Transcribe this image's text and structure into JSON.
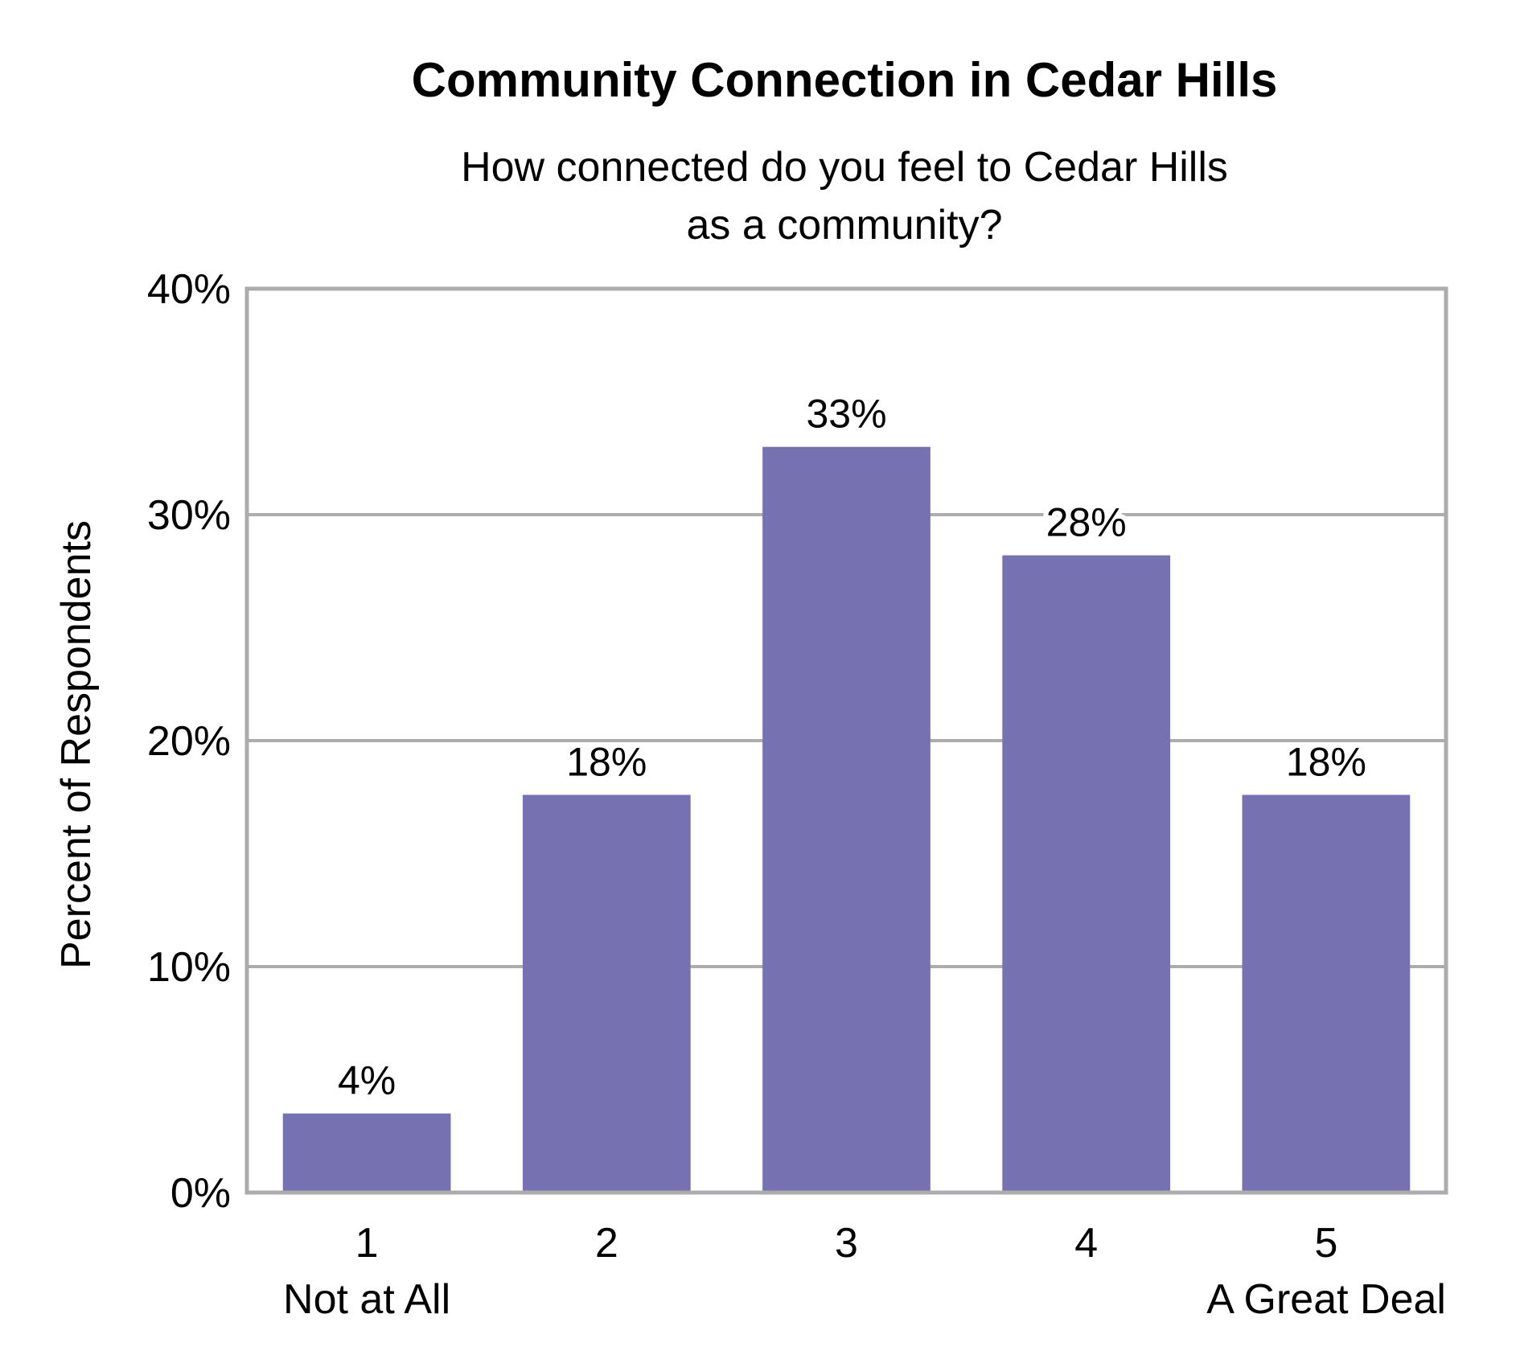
{
  "chart_data": {
    "type": "bar",
    "title": "Community Connection in Cedar Hills",
    "subtitle_lines": [
      "How connected do you feel to Cedar Hills",
      "as a community?"
    ],
    "ylabel": "Percent of Respondents",
    "xlabel": "",
    "categories": [
      "1",
      "2",
      "3",
      "4",
      "5"
    ],
    "category_sublabels": [
      "Not at All",
      "",
      "",
      "",
      "A Great Deal"
    ],
    "values": [
      3.5,
      17.6,
      33.0,
      28.2,
      17.6
    ],
    "data_labels": [
      "4%",
      "18%",
      "33%",
      "28%",
      "18%"
    ],
    "ylim": [
      0,
      40
    ],
    "yticks": [
      0,
      10,
      20,
      30,
      40
    ],
    "ytick_labels": [
      "0%",
      "10%",
      "20%",
      "30%",
      "40%"
    ],
    "grid": true,
    "legend": "none",
    "colors": {
      "bar": "#7672b2",
      "grid": "#acacae",
      "frame": "#acacae"
    }
  }
}
